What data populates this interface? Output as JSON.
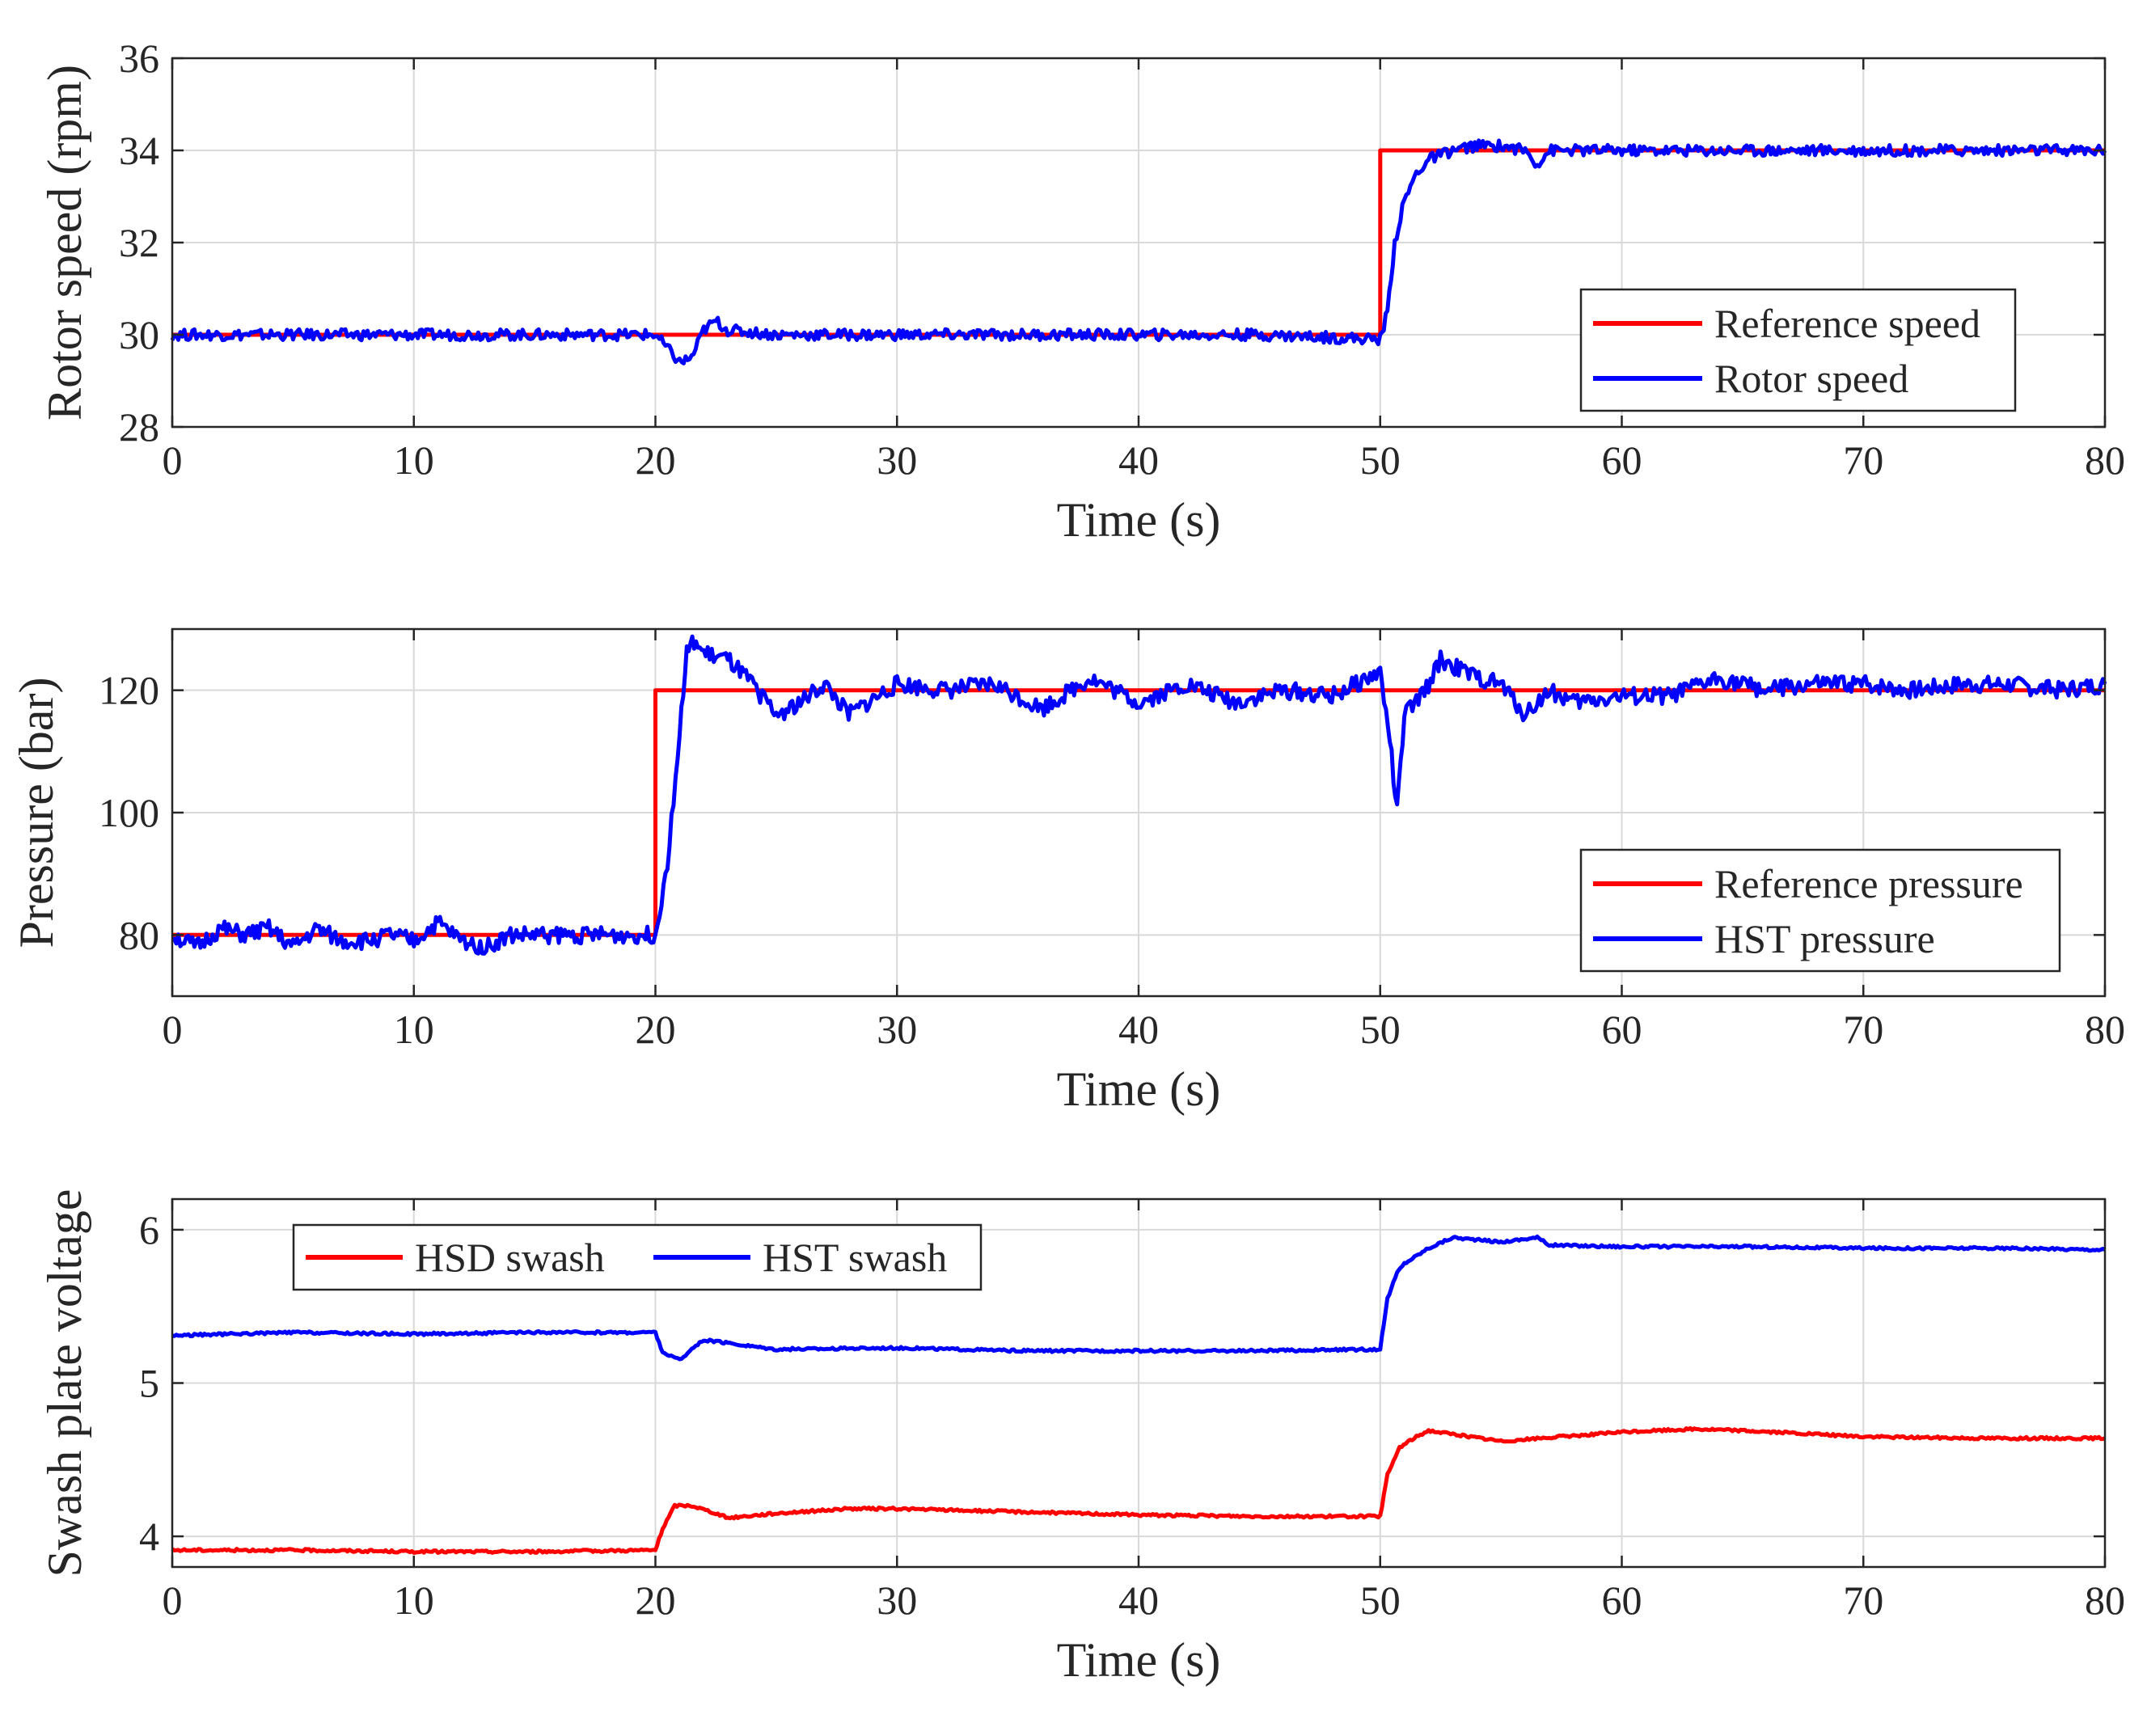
{
  "chart_data": [
    {
      "type": "line",
      "id": "speed",
      "xlabel": "Time (s)",
      "ylabel": "Rotor speed (rpm)",
      "xlim": [
        0,
        80
      ],
      "ylim": [
        28,
        36
      ],
      "xticks": [
        0,
        10,
        20,
        30,
        40,
        50,
        60,
        70,
        80
      ],
      "yticks": [
        28,
        30,
        32,
        34,
        36
      ],
      "grid": true,
      "legend_position": "lower-right",
      "series": [
        {
          "name": "Reference speed",
          "color": "#ff0000",
          "x": [
            0,
            50,
            50,
            80
          ],
          "y": [
            30,
            30,
            34,
            34
          ]
        },
        {
          "name": "Rotor speed",
          "color": "#0000ff",
          "x": [
            0,
            5,
            10,
            15,
            20,
            20.5,
            21,
            21.5,
            22,
            22.5,
            23,
            25,
            30,
            35,
            40,
            45,
            50,
            50.3,
            50.6,
            51,
            51.5,
            52,
            53,
            54,
            55,
            56,
            56.5,
            57,
            60,
            65,
            70,
            75,
            80
          ],
          "y": [
            30,
            30,
            30,
            30,
            30,
            29.7,
            29.4,
            29.5,
            30.1,
            30.3,
            30.1,
            30,
            30,
            30,
            30,
            30,
            29.9,
            30.5,
            32,
            32.9,
            33.5,
            33.8,
            34,
            34.1,
            34.1,
            34,
            33.7,
            34,
            34,
            34,
            34,
            34,
            34
          ]
        }
      ]
    },
    {
      "type": "line",
      "id": "pressure",
      "xlabel": "Time (s)",
      "ylabel": "Pressure (bar)",
      "xlim": [
        0,
        80
      ],
      "ylim": [
        70,
        130
      ],
      "xticks": [
        0,
        10,
        20,
        30,
        40,
        50,
        60,
        70,
        80
      ],
      "yticks": [
        80,
        100,
        120
      ],
      "grid": true,
      "legend_position": "lower-right",
      "series": [
        {
          "name": "Reference pressure",
          "color": "#ff0000",
          "x": [
            0,
            20,
            20,
            80
          ],
          "y": [
            80,
            80,
            120,
            120
          ]
        },
        {
          "name": "HST pressure",
          "color": "#0000ff",
          "x": [
            0,
            1,
            2,
            3,
            4,
            5,
            6,
            7,
            8,
            9,
            10,
            11,
            12,
            13,
            14,
            16,
            18,
            20,
            20.5,
            21,
            21.3,
            21.6,
            22,
            23,
            24,
            25,
            26,
            27,
            28,
            30,
            32,
            34,
            36,
            38,
            40,
            42,
            44,
            46,
            48,
            50,
            50.4,
            50.7,
            51,
            51.5,
            52,
            52.5,
            53,
            54,
            55,
            56,
            57,
            58,
            60,
            62,
            64,
            66,
            68,
            70,
            72,
            74,
            76,
            78,
            80
          ],
          "y": [
            80,
            78,
            81,
            80,
            81,
            78,
            81,
            79,
            79,
            80,
            79,
            82,
            79,
            78,
            80,
            80,
            80,
            80,
            92,
            113,
            126,
            128,
            126,
            125,
            121,
            116,
            118,
            121,
            116,
            121,
            120,
            121,
            117,
            122,
            118,
            121,
            118,
            120,
            119,
            123,
            112,
            100,
            116,
            118,
            121,
            125,
            124,
            122,
            121,
            116,
            120,
            118,
            119,
            119,
            122,
            120,
            121,
            121,
            120,
            121,
            121,
            120,
            121
          ]
        }
      ]
    },
    {
      "type": "line",
      "id": "swash",
      "xlabel": "Time (s)",
      "ylabel": "Swash plate voltage",
      "xlim": [
        0,
        80
      ],
      "ylim": [
        3.8,
        6.2
      ],
      "xticks": [
        0,
        10,
        20,
        30,
        40,
        50,
        60,
        70,
        80
      ],
      "yticks": [
        4,
        5,
        6
      ],
      "grid": true,
      "legend_position": "top-left",
      "series": [
        {
          "name": "HSD swash",
          "color": "#ff0000",
          "x": [
            0,
            5,
            10,
            15,
            20,
            20.3,
            20.8,
            21.5,
            22.5,
            23,
            25,
            28,
            30,
            35,
            40,
            45,
            50,
            50.3,
            50.8,
            51.5,
            52,
            55,
            60,
            63,
            65,
            70,
            75,
            80
          ],
          "y": [
            3.91,
            3.91,
            3.9,
            3.9,
            3.91,
            4.05,
            4.2,
            4.2,
            4.15,
            4.12,
            4.15,
            4.18,
            4.18,
            4.16,
            4.14,
            4.13,
            4.13,
            4.4,
            4.58,
            4.65,
            4.69,
            4.62,
            4.68,
            4.7,
            4.69,
            4.65,
            4.64,
            4.64
          ]
        },
        {
          "name": "HST swash",
          "color": "#0000ff",
          "x": [
            0,
            5,
            10,
            15,
            20,
            20.3,
            21,
            21.5,
            22,
            23,
            25,
            30,
            35,
            40,
            45,
            50,
            50.3,
            50.7,
            51,
            52,
            53,
            55,
            56.5,
            57,
            60,
            65,
            70,
            75,
            80
          ],
          "y": [
            5.31,
            5.33,
            5.32,
            5.33,
            5.33,
            5.2,
            5.15,
            5.22,
            5.28,
            5.26,
            5.22,
            5.23,
            5.21,
            5.21,
            5.21,
            5.22,
            5.55,
            5.72,
            5.78,
            5.88,
            5.95,
            5.92,
            5.95,
            5.9,
            5.89,
            5.89,
            5.88,
            5.88,
            5.87
          ]
        }
      ]
    }
  ]
}
